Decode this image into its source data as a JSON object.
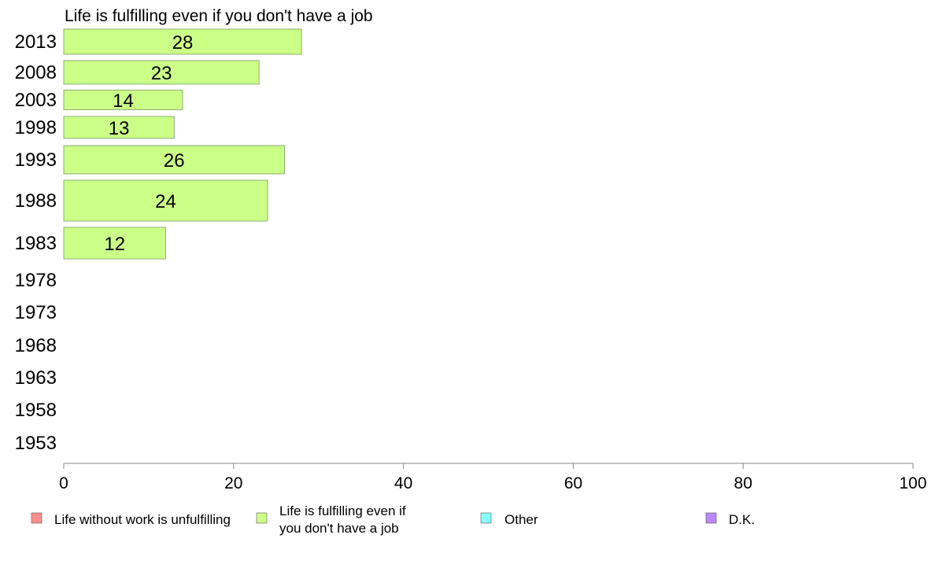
{
  "chart_data": {
    "type": "bar",
    "orientation": "horizontal",
    "title": "Life is fulfilling even if you don't have a job",
    "categories": [
      "2013",
      "2008",
      "2003",
      "1998",
      "1993",
      "1988",
      "1983",
      "1978",
      "1973",
      "1968",
      "1963",
      "1958",
      "1953"
    ],
    "series": [
      {
        "name": "Life is fulfilling even if you don't have a job",
        "values": [
          28,
          23,
          14,
          13,
          26,
          24,
          12,
          null,
          null,
          null,
          null,
          null,
          null
        ],
        "color": "#ccff88"
      }
    ],
    "xlim": [
      0,
      100
    ],
    "xticks": [
      0,
      20,
      40,
      60,
      80,
      100
    ],
    "legend": {
      "placement": "bottom",
      "items": [
        {
          "label": "Life without work is unfulfilling",
          "color": "#ff8f8f"
        },
        {
          "label": "Life is fulfilling even if you don't have a job",
          "color": "#ccff88"
        },
        {
          "label": "Other",
          "color": "#88ffff"
        },
        {
          "label": "D.K.",
          "color": "#bb88ff"
        }
      ]
    },
    "grid": false
  }
}
